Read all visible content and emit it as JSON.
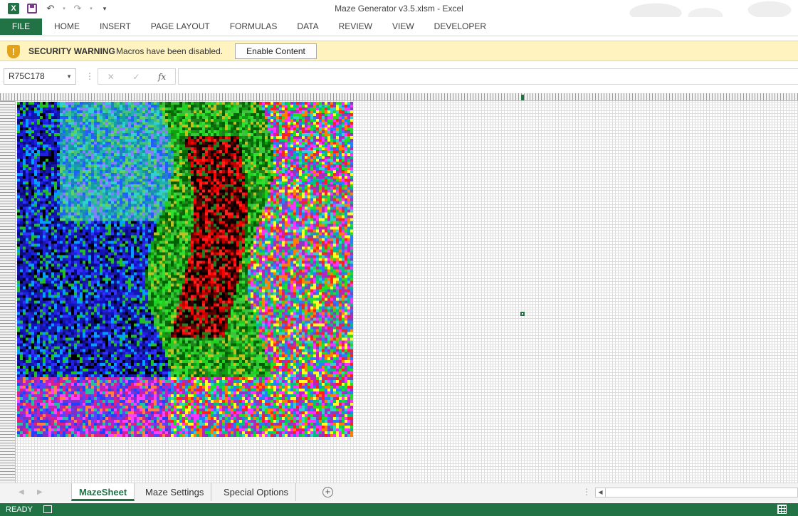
{
  "window": {
    "title": "Maze Generator v3.5.xlsm - Excel"
  },
  "quick_access": {
    "icons": [
      "excel-logo-icon",
      "save-icon",
      "undo-icon",
      "redo-icon",
      "customize-icon"
    ],
    "logo_letter": "X"
  },
  "ribbon": {
    "file_label": "FILE",
    "tabs": [
      "HOME",
      "INSERT",
      "PAGE LAYOUT",
      "FORMULAS",
      "DATA",
      "REVIEW",
      "VIEW",
      "DEVELOPER"
    ]
  },
  "security_bar": {
    "title": "SECURITY WARNING",
    "message": "Macros have been disabled.",
    "button_label": "Enable Content",
    "icon": "shield-warning-icon"
  },
  "formula_bar": {
    "name_box": "R75C178",
    "cancel_glyph": "✕",
    "enter_glyph": "✓",
    "fx_label": "fx",
    "formula_value": ""
  },
  "sheet_tabs": {
    "tabs": [
      "MazeSheet",
      "Maze Settings",
      "Special Options"
    ],
    "active_index": 0
  },
  "status_bar": {
    "status": "READY"
  },
  "colors": {
    "accent": "#217346",
    "warning_bg": "#fff4bf"
  }
}
